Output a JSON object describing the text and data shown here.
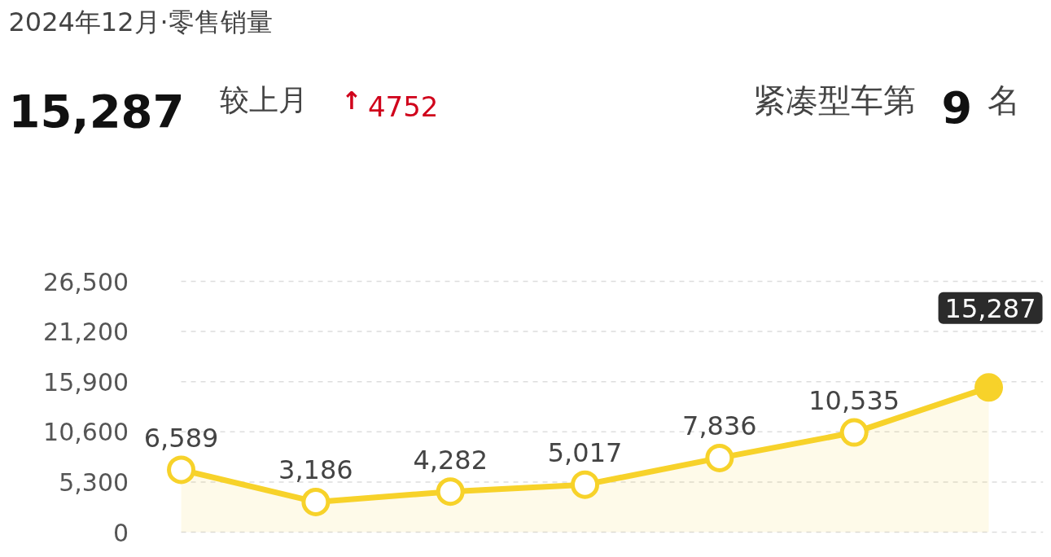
{
  "chart_data": {
    "type": "area",
    "title": "2024年12月·零售销量",
    "annotations": [
      "15,287",
      "较上月",
      "↑",
      "4752",
      "紧凑型车第",
      "9",
      "名"
    ],
    "categories": [
      null,
      null,
      null,
      null,
      null,
      null,
      null
    ],
    "series": [
      {
        "color": "#f7d22a",
        "values": [
          6589,
          3186,
          4282,
          5017,
          7836,
          10535,
          15287
        ],
        "value_labels": [
          "6,589",
          "3,186",
          "4,282",
          "5,017",
          "7,836",
          "10,535",
          "15,287"
        ]
      }
    ],
    "ylim": [
      0,
      26500
    ],
    "yticks": [
      {
        "value": 0,
        "label": "0"
      },
      {
        "value": 5300,
        "label": "5,300"
      },
      {
        "value": 10600,
        "label": "10,600"
      },
      {
        "value": 15900,
        "label": "15,900"
      },
      {
        "value": 21200,
        "label": "21,200"
      },
      {
        "value": 26500,
        "label": "26,500"
      }
    ],
    "tick_labels": "y",
    "grid": "y",
    "marker": "circle",
    "line_style": "solid"
  }
}
